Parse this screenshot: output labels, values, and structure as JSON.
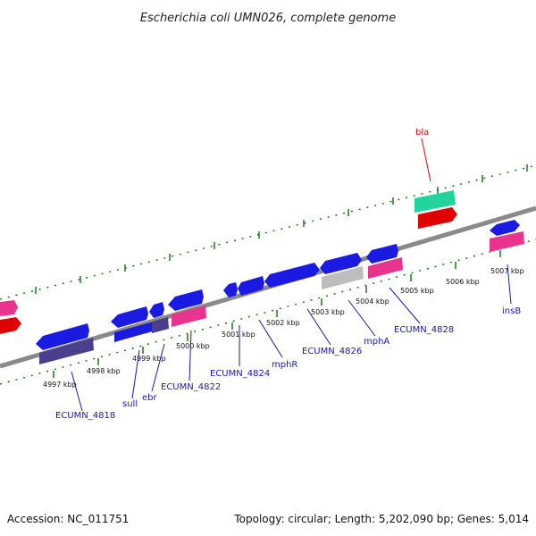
{
  "header": {
    "title": "Escherichia coli UMN026, complete genome"
  },
  "footer": {
    "accession": "Accession: NC_011751",
    "summary": "Topology: circular; Length: 5,202,090 bp; Genes: 5,014"
  },
  "colors": {
    "background": "#ffffff",
    "backbone": "#8a8a8a",
    "cds_forward": "#1a1ae0",
    "cds_reverse": "#1a1ae0",
    "pseudo": "#4a3f8c",
    "rrna_pink": "#e8348c",
    "trna_red": "#e00000",
    "misc_green": "#22d49a",
    "gray_feature": "#bdbdbd",
    "tick": "#1a7a1a",
    "label_blue": "#1a1aa6",
    "label_red": "#cc1111"
  },
  "scale": {
    "ticks": [
      "4997 kbp",
      "4998 kbp",
      "4999 kbp",
      "5000 kbp",
      "5001 kbp",
      "5002 kbp",
      "5003 kbp",
      "5004 kbp",
      "5005 kbp",
      "5006 kbp",
      "5007 kbp"
    ]
  },
  "genes": {
    "ECUMN_4818": "ECUMN_4818",
    "sull": "sull",
    "ebr": "ebr",
    "ECUMN_4822": "ECUMN_4822",
    "ECUMN_4824": "ECUMN_4824",
    "mphR": "mphR",
    "ECUMN_4826": "ECUMN_4826",
    "mphA": "mphA",
    "ECUMN_4828": "ECUMN_4828",
    "insB": "insB",
    "bla": "bla"
  }
}
